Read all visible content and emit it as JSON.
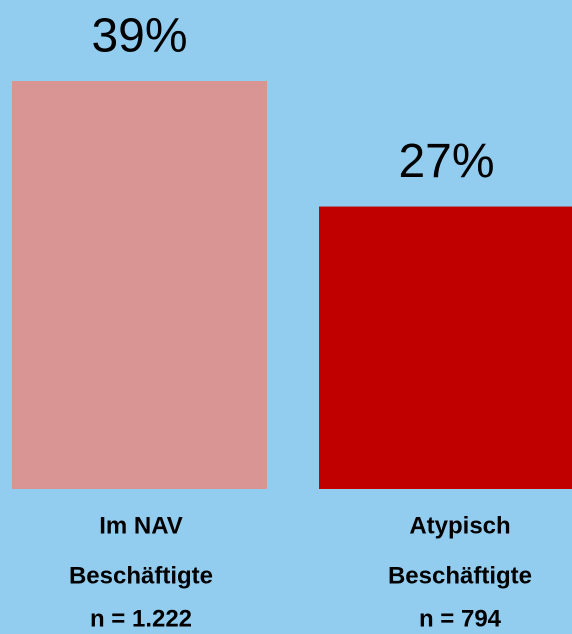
{
  "chart_data": {
    "type": "bar",
    "categories": [
      [
        "Im NAV",
        "Beschäftigte",
        "n = 1.222"
      ],
      [
        "Atypisch",
        "Beschäftigte",
        "n = 794"
      ]
    ],
    "values": [
      39,
      27
    ],
    "value_labels": [
      "39%",
      "27%"
    ],
    "colors": [
      "#d99594",
      "#c00000"
    ]
  }
}
